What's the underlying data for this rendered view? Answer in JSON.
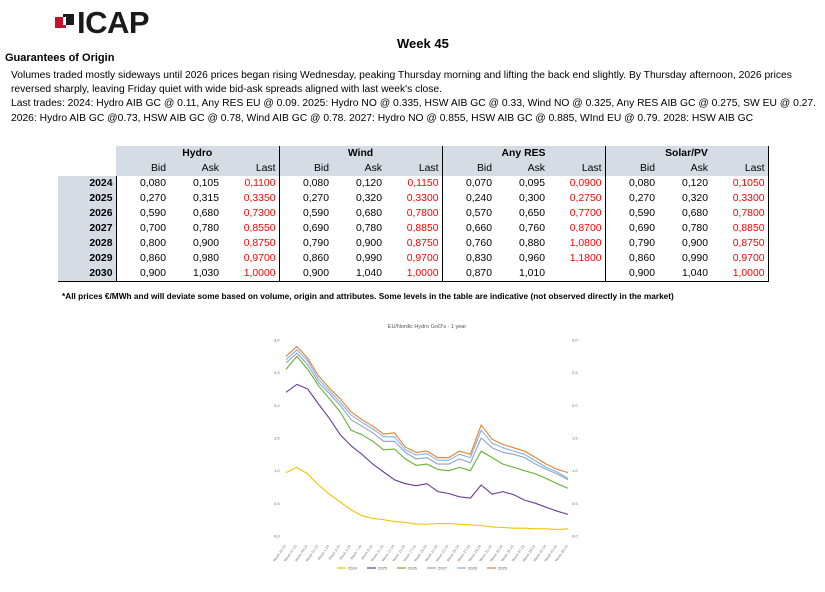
{
  "brand": {
    "logo_text": "ICAP",
    "logo_color": "#c8102e"
  },
  "report": {
    "week": "Week 45",
    "section_title": "Guarantees of Origin",
    "paragraph1": "Volumes traded mostly sideways until 2026 prices began rising Wednesday, peaking Thursday morning and lifting the back end slightly. By Thursday afternoon, 2026 prices reversed sharply, leaving Friday quiet with wide bid-ask spreads aligned with last week's close.",
    "paragraph2": "Last trades:  2024: Hydro AIB GC @ 0.11, Any RES EU @ 0.09.  2025: Hydro NO @ 0.335, HSW AIB GC @ 0.33, Wind NO @ 0.325, Any RES AIB GC @ 0.275, SW EU @ 0.27.  2026: Hydro AIB GC @0.73, HSW AIB GC @ 0.78, Wind AIB GC @ 0.78.  2027: Hydro NO @ 0.855, HSW AIB GC @ 0.885, WInd EU @ 0.79.  2028: HSW AIB GC",
    "footnote": "*All prices €/MWh and will deviate some based on volume, origin and attributes. Some levels in the table are indicative (not observed directly in the market)"
  },
  "table": {
    "groups": [
      "Hydro",
      "Wind",
      "Any RES",
      "Solar/PV"
    ],
    "subheaders": [
      "Bid",
      "Ask",
      "Last"
    ],
    "rows": [
      {
        "year": "2024",
        "cells": [
          [
            "0,080",
            "0,105",
            "0,1100"
          ],
          [
            "0,080",
            "0,120",
            "0,1150"
          ],
          [
            "0,070",
            "0,095",
            "0,0900"
          ],
          [
            "0,080",
            "0,120",
            "0,1050"
          ]
        ]
      },
      {
        "year": "2025",
        "cells": [
          [
            "0,270",
            "0,315",
            "0,3350"
          ],
          [
            "0,270",
            "0,320",
            "0,3300"
          ],
          [
            "0,240",
            "0,300",
            "0,2750"
          ],
          [
            "0,270",
            "0,320",
            "0,3300"
          ]
        ]
      },
      {
        "year": "2026",
        "cells": [
          [
            "0,590",
            "0,680",
            "0,7300"
          ],
          [
            "0,590",
            "0,680",
            "0,7800"
          ],
          [
            "0,570",
            "0,650",
            "0,7700"
          ],
          [
            "0,590",
            "0,680",
            "0,7800"
          ]
        ]
      },
      {
        "year": "2027",
        "cells": [
          [
            "0,700",
            "0,780",
            "0,8550"
          ],
          [
            "0,690",
            "0,780",
            "0,8850"
          ],
          [
            "0,660",
            "0,760",
            "0,8700"
          ],
          [
            "0,690",
            "0,780",
            "0,8850"
          ]
        ]
      },
      {
        "year": "2028",
        "cells": [
          [
            "0,800",
            "0,900",
            "0,8750"
          ],
          [
            "0,790",
            "0,900",
            "0,8750"
          ],
          [
            "0,760",
            "0,880",
            "1,0800"
          ],
          [
            "0,790",
            "0,900",
            "0,8750"
          ]
        ]
      },
      {
        "year": "2029",
        "cells": [
          [
            "0,860",
            "0,980",
            "0,9700"
          ],
          [
            "0,860",
            "0,990",
            "0,9700"
          ],
          [
            "0,830",
            "0,960",
            "1,1800"
          ],
          [
            "0,860",
            "0,990",
            "0,9700"
          ]
        ]
      },
      {
        "year": "2030",
        "cells": [
          [
            "0,900",
            "1,030",
            "1,0000"
          ],
          [
            "0,900",
            "1,040",
            "1,0000"
          ],
          [
            "0,870",
            "1,010",
            ""
          ],
          [
            "0,900",
            "1,040",
            "1,0000"
          ]
        ]
      }
    ]
  },
  "chart_data": {
    "type": "line",
    "title": "EU/Nordic Hydro GoO's - 1 year",
    "ylim": [
      0,
      3
    ],
    "yticks": [
      "0,0",
      "0,5",
      "1,0",
      "1,5",
      "2,0",
      "2,5",
      "3,0"
    ],
    "x": [
      "Week 45-23",
      "Week 47-23",
      "Week 49-23",
      "Week 51-23",
      "Week 1-24",
      "Week 3-24",
      "Week 5-24",
      "Week 7-24",
      "Week 9-24",
      "Week 11-24",
      "Week 13-24",
      "Week 15-24",
      "Week 17-24",
      "Week 19-24",
      "Week 21-24",
      "Week 23-24",
      "Week 25-24",
      "Week 27-24",
      "Week 29-24",
      "Week 31-24",
      "Week 33-24",
      "Week 35-24",
      "Week 37-24",
      "Week 39-24",
      "Week 41-24",
      "Week 43-24",
      "Week 45-24"
    ],
    "colors": {
      "2024": "#f0c400",
      "2025": "#6a3d9a",
      "2026": "#66b032",
      "2027": "#8ca3c7",
      "2028": "#7fb2e5",
      "2029": "#ed7d31"
    },
    "series": [
      {
        "name": "2024",
        "values": [
          0.97,
          1.05,
          0.95,
          0.78,
          0.64,
          0.52,
          0.4,
          0.31,
          0.27,
          0.25,
          0.22,
          0.21,
          0.18,
          0.18,
          0.19,
          0.19,
          0.18,
          0.17,
          0.16,
          0.14,
          0.13,
          0.12,
          0.12,
          0.11,
          0.11,
          0.1,
          0.11
        ]
      },
      {
        "name": "2025",
        "values": [
          2.2,
          2.32,
          2.25,
          2.02,
          1.8,
          1.55,
          1.38,
          1.25,
          1.1,
          0.98,
          0.86,
          0.8,
          0.77,
          0.8,
          0.68,
          0.65,
          0.6,
          0.58,
          0.78,
          0.64,
          0.68,
          0.63,
          0.55,
          0.5,
          0.44,
          0.38,
          0.33
        ]
      },
      {
        "name": "2026",
        "values": [
          2.55,
          2.75,
          2.55,
          2.3,
          2.1,
          1.9,
          1.62,
          1.55,
          1.45,
          1.32,
          1.33,
          1.18,
          1.08,
          1.1,
          1.02,
          1.0,
          1.05,
          1.0,
          1.3,
          1.2,
          1.1,
          1.05,
          1.0,
          0.95,
          0.88,
          0.8,
          0.73
        ]
      },
      {
        "name": "2027",
        "values": [
          2.65,
          2.8,
          2.62,
          2.35,
          2.18,
          2.0,
          1.78,
          1.68,
          1.58,
          1.45,
          1.45,
          1.28,
          1.18,
          1.2,
          1.1,
          1.1,
          1.18,
          1.12,
          1.5,
          1.35,
          1.28,
          1.25,
          1.2,
          1.1,
          1.02,
          0.95,
          0.86
        ]
      },
      {
        "name": "2028",
        "values": [
          2.7,
          2.85,
          2.68,
          2.4,
          2.22,
          2.05,
          1.85,
          1.74,
          1.64,
          1.52,
          1.52,
          1.32,
          1.24,
          1.26,
          1.16,
          1.16,
          1.25,
          1.2,
          1.62,
          1.42,
          1.35,
          1.3,
          1.25,
          1.15,
          1.05,
          0.98,
          0.88
        ]
      },
      {
        "name": "2029",
        "values": [
          2.75,
          2.9,
          2.72,
          2.45,
          2.26,
          2.1,
          1.9,
          1.78,
          1.68,
          1.56,
          1.58,
          1.36,
          1.28,
          1.3,
          1.2,
          1.2,
          1.3,
          1.25,
          1.7,
          1.48,
          1.4,
          1.35,
          1.3,
          1.2,
          1.1,
          1.02,
          0.97
        ]
      }
    ]
  }
}
